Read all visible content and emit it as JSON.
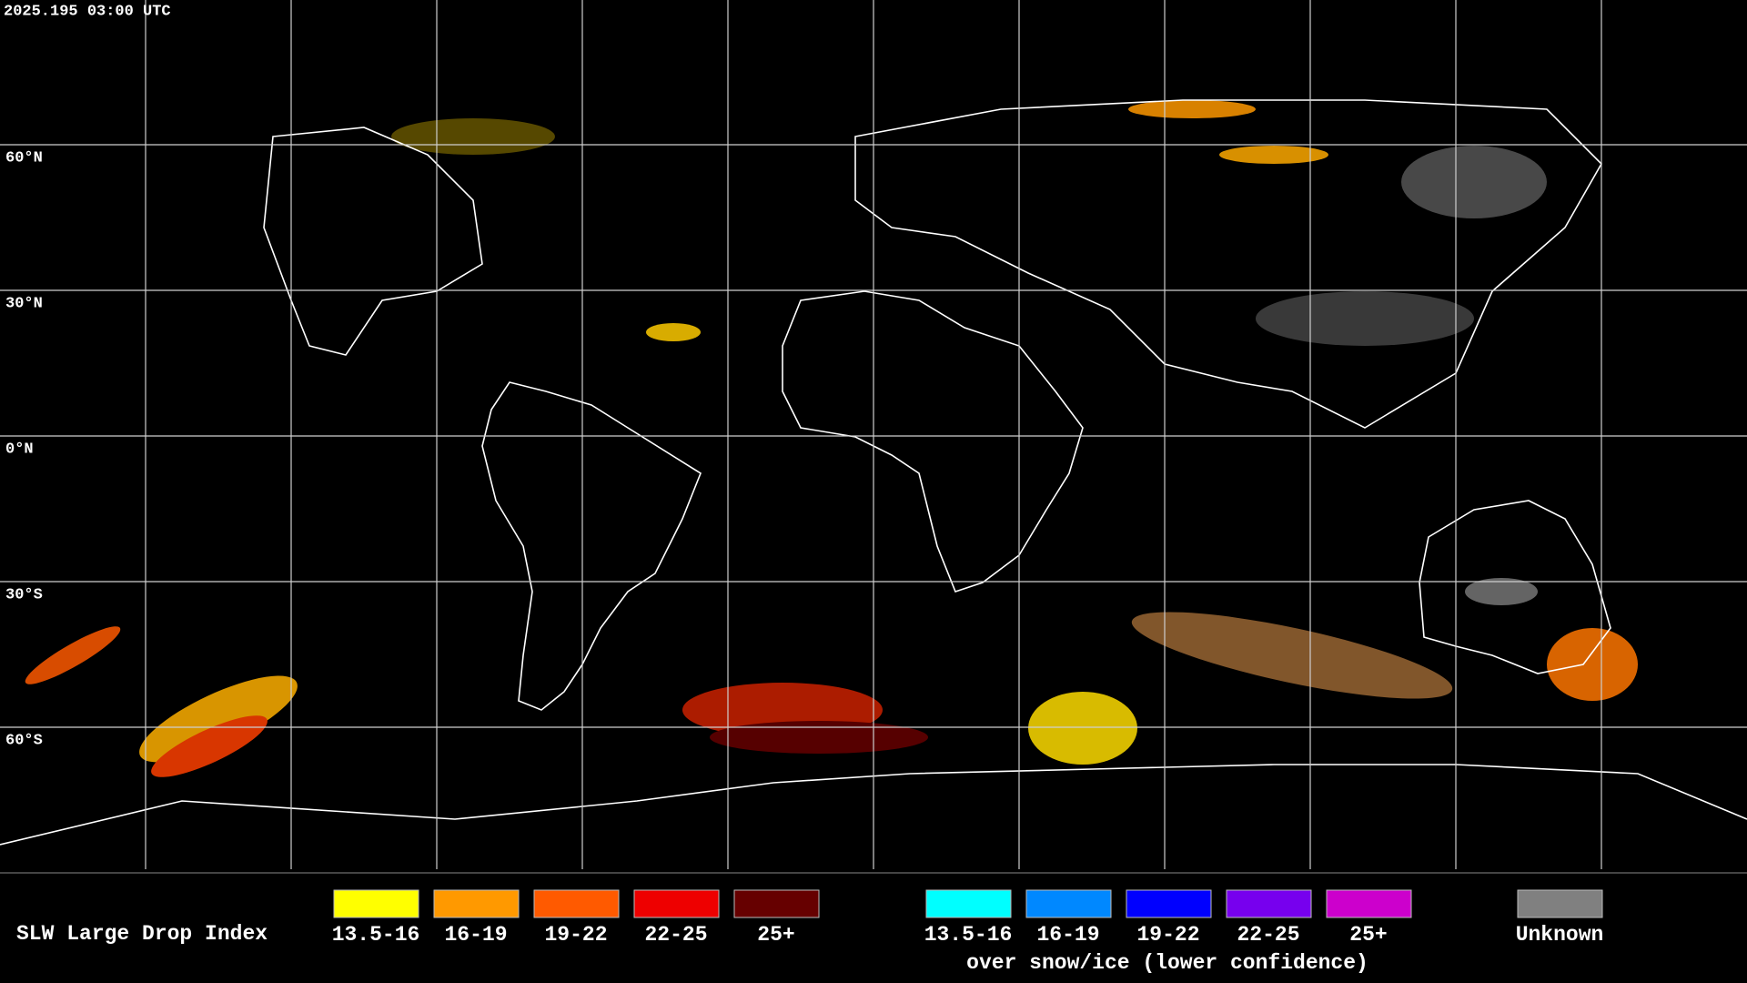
{
  "header": {
    "timestamp": "2025.195 03:00 UTC"
  },
  "map": {
    "lat_labels": [
      "60°N",
      "30°N",
      "0°N",
      "30°S",
      "60°S"
    ]
  },
  "legend": {
    "title": "SLW Large Drop Index",
    "groups": [
      {
        "items": [
          {
            "label": "13.5-16",
            "color": "#ffff00"
          },
          {
            "label": "16-19",
            "color": "#ff9900"
          },
          {
            "label": "19-22",
            "color": "#ff5a00"
          },
          {
            "label": "22-25",
            "color": "#ee0000"
          },
          {
            "label": "25+",
            "color": "#660000"
          }
        ]
      },
      {
        "items": [
          {
            "label": "13.5-16",
            "color": "#00ffff"
          },
          {
            "label": "16-19",
            "color": "#0088ff"
          },
          {
            "label": "19-22",
            "color": "#0000ff"
          },
          {
            "label": "22-25",
            "color": "#7700ee"
          },
          {
            "label": "25+",
            "color": "#cc00cc"
          }
        ],
        "caption": "over snow/ice (lower confidence)"
      }
    ],
    "unknown": {
      "label": "Unknown",
      "color": "#808080"
    }
  }
}
